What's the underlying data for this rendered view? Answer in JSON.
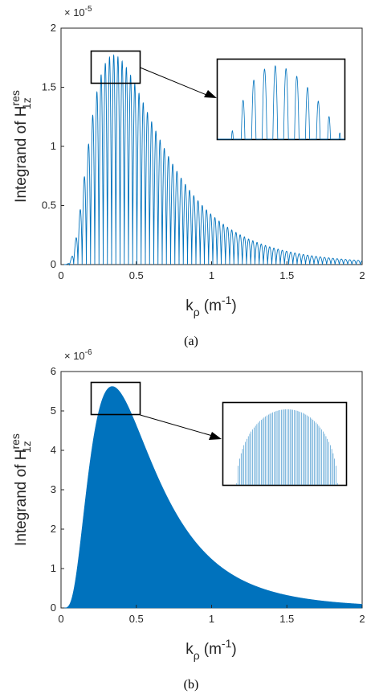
{
  "captions": [
    "(a)",
    "(b)"
  ],
  "chart_data": [
    {
      "type": "line",
      "ylabel": "Integrand of H",
      "ylabel_sup": "res",
      "ylabel_sub": "1z",
      "xlabel": "k",
      "xlabel_sub": "ρ",
      "xlabel_unit": "(m",
      "xlabel_unit_sup": "-1",
      "xlabel_unit_end": ")",
      "xlim": [
        0,
        2
      ],
      "ylim": [
        0,
        2
      ],
      "y_exponent": "× 10",
      "y_exponent_power": "-5",
      "x_ticks": [
        "0",
        "0.5",
        "1",
        "1.5",
        "2"
      ],
      "y_ticks": [
        "0",
        "0.5",
        "1",
        "1.5",
        "2"
      ],
      "series": [
        {
          "envelope_peak_x": 0.35,
          "envelope_peak_y": 1.77,
          "oscillation_period": 0.028,
          "color": "#0072BD"
        }
      ],
      "zoom_region": {
        "x": [
          0.2,
          0.53
        ],
        "y": [
          1.52,
          1.8
        ]
      },
      "grid": false
    },
    {
      "type": "area",
      "ylabel": "Integrand of H",
      "ylabel_sup": "res",
      "ylabel_sub": "1z",
      "xlabel": "k",
      "xlabel_sub": "ρ",
      "xlabel_unit": "(m",
      "xlabel_unit_sup": "-1",
      "xlabel_unit_end": ")",
      "xlim": [
        0,
        2
      ],
      "ylim": [
        0,
        6
      ],
      "y_exponent": "× 10",
      "y_exponent_power": "-6",
      "x_ticks": [
        "0",
        "0.5",
        "1",
        "1.5",
        "2"
      ],
      "y_ticks": [
        "0",
        "1",
        "2",
        "3",
        "4",
        "5",
        "6"
      ],
      "series": [
        {
          "envelope_peak_x": 0.34,
          "envelope_peak_y": 5.62,
          "color": "#0072BD"
        }
      ],
      "zoom_region": {
        "x": [
          0.2,
          0.53
        ],
        "y": [
          4.9,
          5.7
        ]
      },
      "grid": false
    }
  ]
}
